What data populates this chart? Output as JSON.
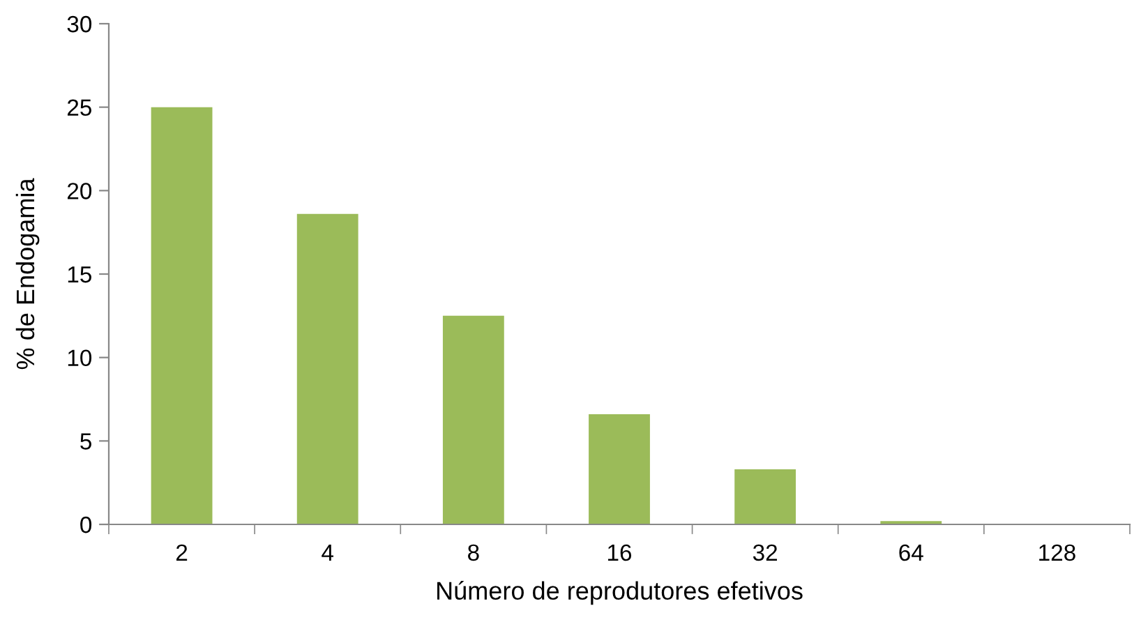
{
  "chart_data": {
    "type": "bar",
    "xlabel": "Número de reprodutores efetivos",
    "ylabel": "% de Endogamia",
    "categories": [
      "2",
      "4",
      "8",
      "16",
      "32",
      "64",
      "128"
    ],
    "values": [
      25,
      18.6,
      12.5,
      6.6,
      3.3,
      0.2,
      0
    ],
    "color": "#9bbb59",
    "ylim": [
      0,
      30
    ],
    "yticks": [
      0,
      5,
      10,
      15,
      20,
      25,
      30
    ],
    "grid": false,
    "legend": false
  }
}
